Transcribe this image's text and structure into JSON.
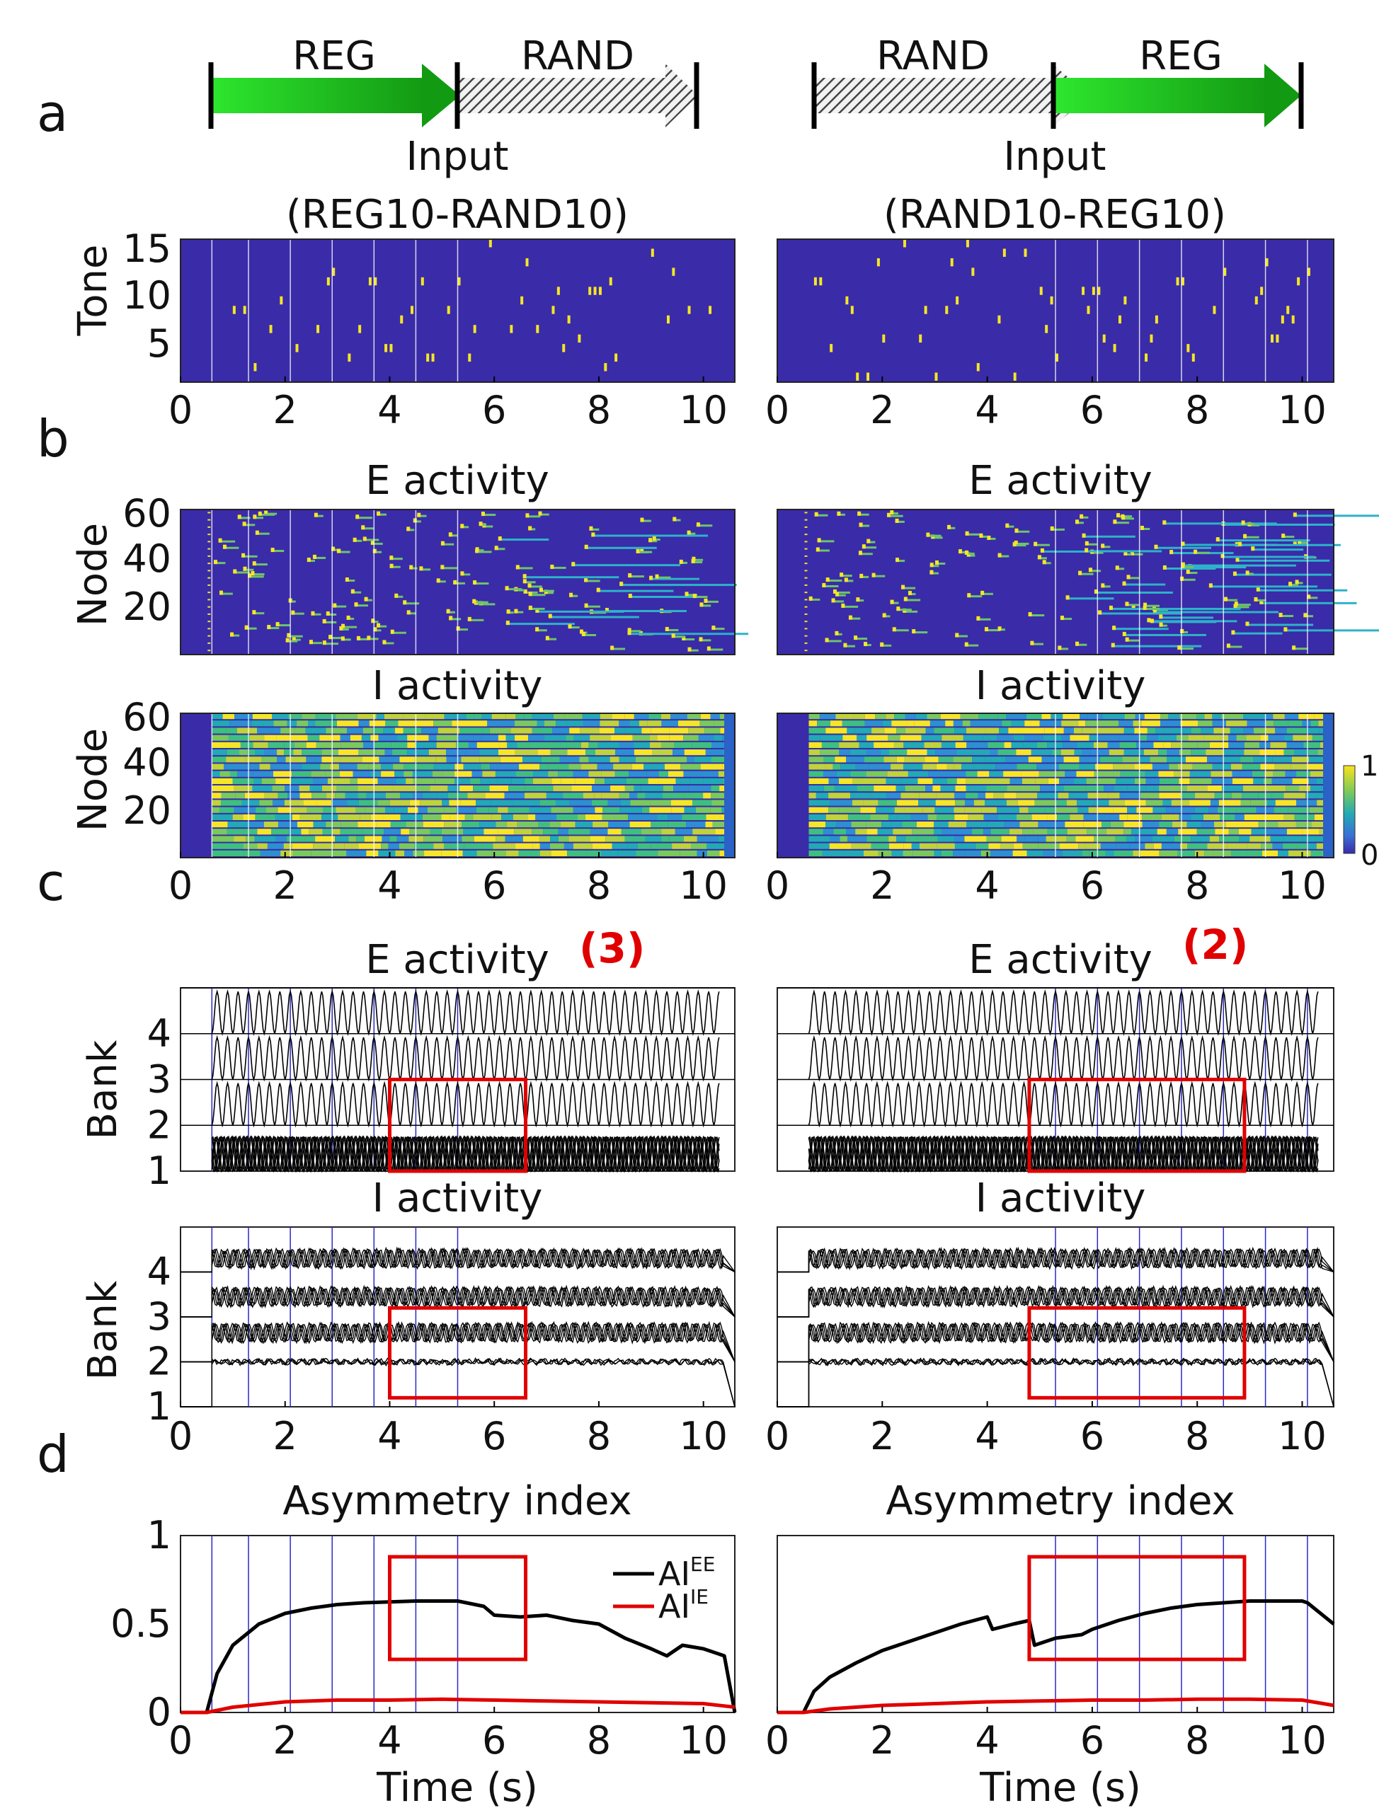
{
  "panel_labels": [
    "a",
    "b",
    "c",
    "d"
  ],
  "colors": {
    "heatmap_bg": "#3a2ba8",
    "heatmap_hi": "#f5e626",
    "reg_arrow": "#1fbe1f",
    "rand_hatch": "#444444",
    "event_line": "#2828c8",
    "highlight": "#e00000",
    "ai_ee": "#000000",
    "ai_ie": "#e00000"
  },
  "panel_a": {
    "left": {
      "arrow_labels": [
        "REG",
        "RAND"
      ],
      "title_line1": "Input",
      "title_line2": "(REG10-RAND10)"
    },
    "right": {
      "arrow_labels": [
        "RAND",
        "REG"
      ],
      "title_line1": "Input",
      "title_line2": "(RAND10-REG10)"
    },
    "ylabel": "Tone",
    "yticks": [
      "15",
      "10",
      "5"
    ]
  },
  "panel_b": {
    "e_title": "E activity",
    "i_title": "I activity",
    "ylabel": "Node",
    "yticks": [
      "60",
      "40",
      "20"
    ],
    "colorbar_ticks": [
      "1",
      "0"
    ]
  },
  "panel_c": {
    "e_title": "E activity",
    "i_title": "I activity",
    "ylabel": "Bank",
    "yticks": [
      "4",
      "3",
      "2",
      "1"
    ],
    "annotations": [
      "(3)",
      "(2)"
    ]
  },
  "panel_d": {
    "title": "Asymmetry index",
    "yticks": [
      "1",
      "0.5",
      "0"
    ],
    "xlabel": "Time (s)",
    "legend": [
      {
        "base": "AI",
        "sup": "EE"
      },
      {
        "base": "AI",
        "sup": "IE"
      }
    ]
  },
  "xticks": [
    "0",
    "2",
    "4",
    "6",
    "8",
    "10"
  ],
  "chart_data": [
    {
      "type": "heatmap",
      "panel": "a-left",
      "x_range": [
        0,
        10.6
      ],
      "y_range": [
        1,
        15
      ],
      "event_lines_s": [
        0.6,
        1.3,
        2.1,
        2.9,
        3.7,
        4.5,
        5.3
      ]
    },
    {
      "type": "heatmap",
      "panel": "a-right",
      "x_range": [
        0,
        10.6
      ],
      "y_range": [
        1,
        15
      ],
      "event_lines_s": [
        5.3,
        6.1,
        6.9,
        7.7,
        8.5,
        9.3,
        10.1
      ]
    },
    {
      "type": "heatmap",
      "panel": "b-E-left",
      "x_range": [
        0,
        10.6
      ],
      "y_range": [
        0,
        60
      ],
      "colorbar_range": [
        0,
        1
      ],
      "event_lines_s": [
        0.6,
        1.3,
        2.1,
        2.9,
        3.7,
        4.5,
        5.3
      ]
    },
    {
      "type": "heatmap",
      "panel": "b-E-right",
      "x_range": [
        0,
        10.6
      ],
      "y_range": [
        0,
        60
      ],
      "colorbar_range": [
        0,
        1
      ],
      "event_lines_s": [
        5.3,
        6.1,
        6.9,
        7.7,
        8.5,
        9.3,
        10.1
      ]
    },
    {
      "type": "heatmap",
      "panel": "b-I-left",
      "x_range": [
        0,
        10.6
      ],
      "y_range": [
        0,
        60
      ],
      "colorbar_range": [
        0,
        1
      ],
      "event_lines_s": [
        0.6,
        1.3,
        2.1,
        2.9,
        3.7,
        4.5,
        5.3
      ]
    },
    {
      "type": "heatmap",
      "panel": "b-I-right",
      "x_range": [
        0,
        10.6
      ],
      "y_range": [
        0,
        60
      ],
      "colorbar_range": [
        0,
        1
      ],
      "event_lines_s": [
        5.3,
        6.1,
        6.9,
        7.7,
        8.5,
        9.3,
        10.1
      ]
    },
    {
      "type": "line",
      "panel": "c-E-left",
      "x_range": [
        0,
        10.6
      ],
      "y_range": [
        1,
        5
      ],
      "highlight_box": {
        "x": [
          4.0,
          6.6
        ],
        "y": [
          1.0,
          3.0
        ]
      },
      "event_lines_s": [
        0.6,
        1.3,
        2.1,
        2.9,
        3.7,
        4.5,
        5.3
      ]
    },
    {
      "type": "line",
      "panel": "c-E-right",
      "x_range": [
        0,
        10.6
      ],
      "y_range": [
        1,
        5
      ],
      "highlight_box": {
        "x": [
          4.8,
          8.9
        ],
        "y": [
          1.0,
          3.0
        ]
      },
      "event_lines_s": [
        5.3,
        6.1,
        6.9,
        7.7,
        8.5,
        9.3,
        10.1
      ]
    },
    {
      "type": "line",
      "panel": "c-I-left",
      "x_range": [
        0,
        10.6
      ],
      "y_range": [
        1,
        5
      ],
      "highlight_box": {
        "x": [
          4.0,
          6.6
        ],
        "y": [
          1.2,
          3.2
        ]
      },
      "event_lines_s": [
        0.6,
        1.3,
        2.1,
        2.9,
        3.7,
        4.5,
        5.3
      ]
    },
    {
      "type": "line",
      "panel": "c-I-right",
      "x_range": [
        0,
        10.6
      ],
      "y_range": [
        1,
        5
      ],
      "highlight_box": {
        "x": [
          4.8,
          8.9
        ],
        "y": [
          1.2,
          3.2
        ]
      },
      "event_lines_s": [
        5.3,
        6.1,
        6.9,
        7.7,
        8.5,
        9.3,
        10.1
      ]
    },
    {
      "type": "line",
      "panel": "d-left",
      "x_range": [
        0,
        10.6
      ],
      "y_range": [
        0,
        1
      ],
      "highlight_box": {
        "x": [
          4.0,
          6.6
        ],
        "y": [
          0.3,
          0.88
        ]
      },
      "event_lines_s": [
        0.6,
        1.3,
        2.1,
        2.9,
        3.7,
        4.5,
        5.3
      ],
      "series": [
        {
          "name": "AI^EE",
          "x": [
            0,
            0.5,
            0.7,
            1.0,
            1.5,
            2.0,
            2.5,
            3.0,
            3.5,
            4.0,
            4.5,
            5.0,
            5.3,
            5.8,
            6.0,
            6.5,
            7.0,
            7.5,
            8.0,
            8.5,
            9.0,
            9.3,
            9.6,
            10.0,
            10.4,
            10.6
          ],
          "y": [
            0,
            0,
            0.22,
            0.38,
            0.5,
            0.56,
            0.59,
            0.61,
            0.62,
            0.625,
            0.63,
            0.63,
            0.63,
            0.6,
            0.55,
            0.54,
            0.55,
            0.52,
            0.5,
            0.42,
            0.36,
            0.32,
            0.38,
            0.36,
            0.32,
            0
          ]
        },
        {
          "name": "AI^IE",
          "x": [
            0,
            0.5,
            1.0,
            2.0,
            3.0,
            4.0,
            5.0,
            6.0,
            7.0,
            8.0,
            9.0,
            10.0,
            10.6
          ],
          "y": [
            0,
            0,
            0.03,
            0.06,
            0.07,
            0.07,
            0.075,
            0.07,
            0.065,
            0.06,
            0.055,
            0.05,
            0.03
          ]
        }
      ]
    },
    {
      "type": "line",
      "panel": "d-right",
      "x_range": [
        0,
        10.6
      ],
      "y_range": [
        0,
        1
      ],
      "highlight_box": {
        "x": [
          4.8,
          8.9
        ],
        "y": [
          0.3,
          0.88
        ]
      },
      "event_lines_s": [
        5.3,
        6.1,
        6.9,
        7.7,
        8.5,
        9.3,
        10.1
      ],
      "series": [
        {
          "name": "AI^EE",
          "x": [
            0,
            0.5,
            0.7,
            1.0,
            1.5,
            2.0,
            2.5,
            3.0,
            3.5,
            4.0,
            4.1,
            4.5,
            4.8,
            4.9,
            5.3,
            5.8,
            6.0,
            6.5,
            7.0,
            7.5,
            8.0,
            8.5,
            9.0,
            9.5,
            10.0,
            10.1,
            10.6
          ],
          "y": [
            0,
            0,
            0.12,
            0.2,
            0.28,
            0.35,
            0.4,
            0.45,
            0.5,
            0.54,
            0.47,
            0.5,
            0.52,
            0.38,
            0.42,
            0.44,
            0.47,
            0.52,
            0.56,
            0.59,
            0.61,
            0.62,
            0.63,
            0.63,
            0.63,
            0.62,
            0.5
          ]
        },
        {
          "name": "AI^IE",
          "x": [
            0,
            0.5,
            1.0,
            2.0,
            3.0,
            4.0,
            5.0,
            6.0,
            7.0,
            8.0,
            9.0,
            10.0,
            10.6
          ],
          "y": [
            0,
            0,
            0.02,
            0.04,
            0.05,
            0.06,
            0.065,
            0.07,
            0.07,
            0.075,
            0.075,
            0.07,
            0.04
          ]
        }
      ]
    }
  ]
}
